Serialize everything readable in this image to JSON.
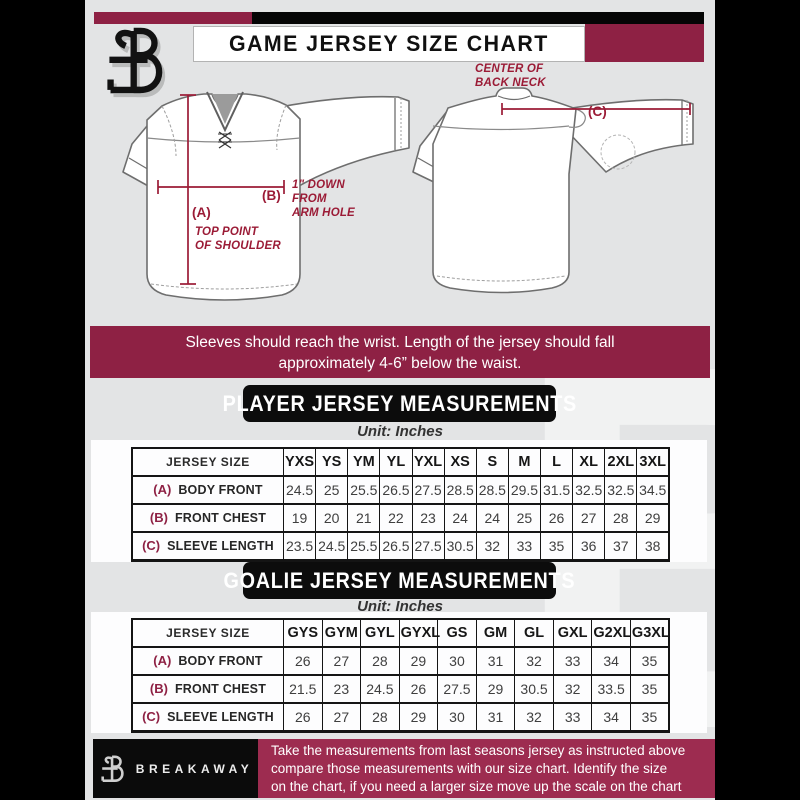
{
  "colors": {
    "bg": "#e3e4e5",
    "accent": "#8e2144",
    "accent-light": "#9d2c50",
    "note": "#9b1b36"
  },
  "header": {
    "title": "GAME JERSEY SIZE CHART",
    "logo_icon": "breakaway-b-logo"
  },
  "diagram": {
    "front": {
      "a_key": "(A)",
      "a_note_1": "TOP POINT",
      "a_note_2": "OF SHOULDER",
      "b_key": "(B)",
      "b_note_1": "1\" DOWN",
      "b_note_2": "FROM",
      "b_note_3": "ARM HOLE"
    },
    "back": {
      "c_key": "(C)",
      "c_note_1": "CENTER OF",
      "c_note_2": "BACK NECK"
    }
  },
  "banner": {
    "line1": "Sleeves should reach the wrist. Length of the jersey should fall",
    "line2": "approximately 4-6” below the waist."
  },
  "player_table": {
    "title": "PLAYER JERSEY MEASUREMENTS",
    "unit": "Unit: Inches",
    "header": [
      "JERSEY SIZE",
      "YXS",
      "YS",
      "YM",
      "YL",
      "YXL",
      "XS",
      "S",
      "M",
      "L",
      "XL",
      "2XL",
      "3XL"
    ],
    "rows": [
      {
        "key": "(A)",
        "label": "BODY FRONT",
        "values": [
          24.5,
          25,
          25.5,
          26.5,
          27.5,
          28.5,
          28.5,
          29.5,
          31.5,
          32.5,
          32.5,
          34.5
        ]
      },
      {
        "key": "(B)",
        "label": "FRONT CHEST",
        "values": [
          19,
          20,
          21,
          22,
          23,
          24,
          24,
          25,
          26,
          27,
          28,
          29
        ]
      },
      {
        "key": "(C)",
        "label": "SLEEVE LENGTH",
        "values": [
          23.5,
          24.5,
          25.5,
          26.5,
          27.5,
          30.5,
          32,
          33,
          35,
          36,
          37,
          38
        ]
      }
    ]
  },
  "goalie_table": {
    "title": "GOALIE JERSEY MEASUREMENTS",
    "unit": "Unit: Inches",
    "header": [
      "JERSEY SIZE",
      "GYS",
      "GYM",
      "GYL",
      "GYXL",
      "GS",
      "GM",
      "GL",
      "GXL",
      "G2XL",
      "G3XL"
    ],
    "rows": [
      {
        "key": "(A)",
        "label": "BODY FRONT",
        "values": [
          26,
          27,
          28,
          29,
          30,
          31,
          32,
          33,
          34,
          35
        ]
      },
      {
        "key": "(B)",
        "label": "FRONT CHEST",
        "values": [
          21.5,
          23,
          24.5,
          26,
          27.5,
          29,
          30.5,
          32,
          33.5,
          35
        ]
      },
      {
        "key": "(C)",
        "label": "SLEEVE LENGTH",
        "values": [
          26,
          27,
          28,
          29,
          30,
          31,
          32,
          33,
          34,
          35
        ]
      }
    ]
  },
  "footer": {
    "brand": "BREAKAWAY",
    "line1": "Take the measurements from last seasons jersey as instructed above",
    "line2": "compare those measurements  with our size chart. Identify the size",
    "line3": "on the chart, if you need a larger size move up the scale on the chart"
  }
}
